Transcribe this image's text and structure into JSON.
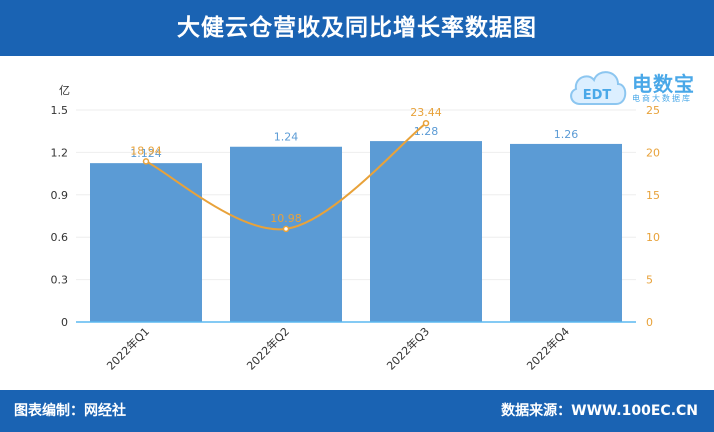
{
  "header": {
    "title": "大健云仓营收及同比增长率数据图"
  },
  "footer": {
    "left": "图表编制：网经社",
    "right": "数据来源：WWW.100EC.CN"
  },
  "logo": {
    "brand": "电数宝",
    "sub": "电商大数据库",
    "mark": "EDT"
  },
  "colors": {
    "bar": "#5b9bd5",
    "line": "#e8a23a",
    "header_bg": "#1a63b3",
    "axis_left": "#333333",
    "axis_right": "#e8a23a"
  },
  "chart_data": {
    "type": "bar",
    "categories": [
      "2022年Q1",
      "2022年Q2",
      "2022年Q3",
      "2022年Q4"
    ],
    "left_axis_unit": "亿",
    "ylim": [
      0,
      1.5
    ],
    "yticks": [
      0,
      0.3,
      0.6,
      0.9,
      1.2,
      1.5
    ],
    "y2lim": [
      0,
      25
    ],
    "y2ticks": [
      0,
      5,
      10,
      15,
      20,
      25
    ],
    "series": [
      {
        "type": "bar",
        "values": [
          1.124,
          1.24,
          1.28,
          1.26
        ],
        "labels": [
          "1.124",
          "1.24",
          "1.28",
          "1.26"
        ]
      },
      {
        "type": "line",
        "axis": "right",
        "values": [
          18.94,
          10.98,
          23.44,
          null
        ],
        "labels": [
          "18.94",
          "10.98",
          "23.44",
          ""
        ]
      }
    ],
    "grid": true
  }
}
